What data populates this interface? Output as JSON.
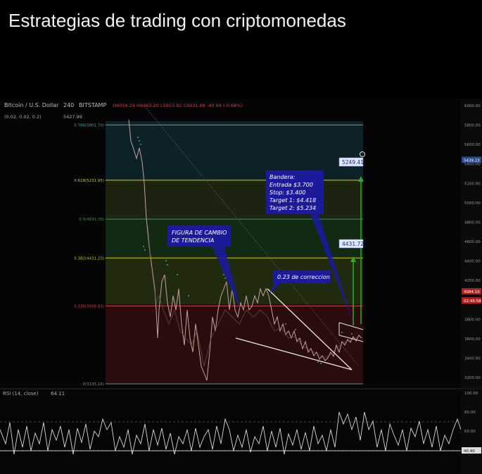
{
  "video": {
    "title": "Estrategias de trading con criptomonedas"
  },
  "chart": {
    "symbol": "Bitcoin / U.S. Dollar",
    "interval": "240",
    "exchange": "BITSTAMP",
    "ohlc": "O6056.24  H6063.20  L5953.92  C6031.88  -40.94 (-0.68%)",
    "indicator_line": "(0.02, 0.02, 0.2)",
    "indicator_value": "5427.99",
    "fib_levels": [
      {
        "label": "0.786(5801.70)",
        "price": 5801.7,
        "color": "#5aa0a0"
      },
      {
        "label": "0.618(5231.95)",
        "price": 5231.95,
        "color": "#c8c830"
      },
      {
        "label": "0.5(4831.39)",
        "price": 4831.39,
        "color": "#3c9a3c"
      },
      {
        "label": "0.382(4431.23)",
        "price": 4431.23,
        "color": "#c8c820"
      },
      {
        "label": "0.236(3936.83)",
        "price": 3936.83,
        "color": "#d04040"
      },
      {
        "label": "0(3135.16)",
        "price": 3135.16,
        "color": "#888"
      }
    ],
    "price_axis": [
      "6000.00",
      "5800.00",
      "5600.00",
      "5400.00",
      "5200.00",
      "5000.00",
      "4800.00",
      "4600.00",
      "4400.00",
      "4200.00",
      "4000.00",
      "3800.00",
      "3600.00",
      "3400.00",
      "3200.00"
    ],
    "axis_tags": [
      {
        "text": "5439.23",
        "price": 5439.23,
        "color": "#2a4a8a"
      },
      {
        "text": "4084.10",
        "price": 4084.1,
        "color": "#b02020"
      },
      {
        "text": "02:45:58",
        "price": 3990.0,
        "color": "#b02020"
      }
    ],
    "target_labels": [
      {
        "text": "5249.41",
        "price": 5249.41
      },
      {
        "text": "4431.72",
        "price": 4431.72
      }
    ]
  },
  "annotations": {
    "bandera": [
      "Bandera:",
      "Entrada $3.700",
      "Stop: $3.400",
      "Target 1: $4.418",
      "Target 2: $5.234"
    ],
    "figura": [
      "FIGURA DE CAMBIO",
      "DE TENDENCIA"
    ],
    "correccion": "0.23 de correccion"
  },
  "rsi": {
    "label": "RSI (14, close)",
    "value": "64.11",
    "axis": [
      "100.00",
      "80.00",
      "60.00",
      "40.00"
    ],
    "current_tag": "40.40"
  },
  "colors": {
    "background": "#000000",
    "panel": "#0b0b0b",
    "annotation_bg": "#1a1a8a",
    "target": "#2ea82e"
  }
}
